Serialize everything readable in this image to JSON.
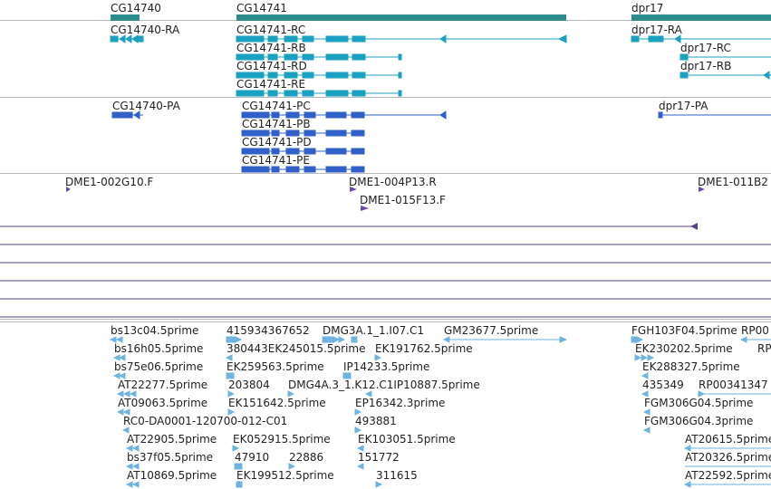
{
  "colors": {
    "gene": "#2e8b8b",
    "transcript": "#1aa0c0",
    "protein": "#3060c8",
    "clone": "#6a4aaa",
    "est": "#6fb3e0",
    "alignment_line": "#5a3f8a",
    "separator": "#b9b9b9"
  },
  "tracks": {
    "genes": [
      {
        "id": "CG14740",
        "label": "CG14740"
      },
      {
        "id": "CG14741",
        "label": "CG14741"
      },
      {
        "id": "dpr17",
        "label": "dpr17"
      }
    ],
    "transcripts": [
      {
        "label": "CG14740-RA"
      },
      {
        "label": "CG14741-RC"
      },
      {
        "label": "CG14741-RB"
      },
      {
        "label": "CG14741-RD"
      },
      {
        "label": "CG14741-RE"
      },
      {
        "label": "dpr17-RA"
      },
      {
        "label": "dpr17-RC"
      },
      {
        "label": "dpr17-RB"
      }
    ],
    "proteins": [
      {
        "label": "CG14740-PA"
      },
      {
        "label": "CG14741-PC"
      },
      {
        "label": "CG14741-PB"
      },
      {
        "label": "CG14741-PD"
      },
      {
        "label": "CG14741-PE"
      },
      {
        "label": "dpr17-PA"
      }
    ],
    "clones": [
      {
        "label": "DME1-002G10.F"
      },
      {
        "label": "DME1-004P13.R"
      },
      {
        "label": "DME1-015F13.F"
      },
      {
        "label": "DME1-011B2"
      }
    ],
    "ests": [
      {
        "label": "bs13c04.5prime"
      },
      {
        "label": "415934367652"
      },
      {
        "label": "DMG3A.1_1.I07.C1"
      },
      {
        "label": "GM23677.5prime"
      },
      {
        "label": "FGH103F04.5prime"
      },
      {
        "label": "RP00"
      },
      {
        "label": "bs16h05.5prime"
      },
      {
        "label": "380443EK245015.5prime"
      },
      {
        "label": "EK191762.5prime"
      },
      {
        "label": "EK230202.5prime"
      },
      {
        "label": "RP"
      },
      {
        "label": "bs75e06.5prime"
      },
      {
        "label": "EK259563.5prime"
      },
      {
        "label": "EK288327.5prime"
      },
      {
        "label": "AT22277.5prime"
      },
      {
        "label": "IP14233.5prime"
      },
      {
        "label": "AT09063.5prime"
      },
      {
        "label": "203804"
      },
      {
        "label": "DMG4A.3_1.K12.C1IP10887.5prime"
      },
      {
        "label": "435349"
      },
      {
        "label": "RP00341347"
      },
      {
        "label": "EK151642.5prime"
      },
      {
        "label": "EP16342.3prime"
      },
      {
        "label": "FGM306G04.5prime"
      },
      {
        "label": "RC0-DA0001-120700-012-C01"
      },
      {
        "label": "493881"
      },
      {
        "label": "FGM306G04.3prime"
      },
      {
        "label": "AT22905.5prime"
      },
      {
        "label": "EK052915.5prime"
      },
      {
        "label": "EK103051.5prime"
      },
      {
        "label": "AT20615.5prime"
      },
      {
        "label": "bs37f05.5prime"
      },
      {
        "label": "47910"
      },
      {
        "label": "22886"
      },
      {
        "label": "151772"
      },
      {
        "label": "AT20326.5prime"
      },
      {
        "label": "AT10869.5prime"
      },
      {
        "label": "EK199512.5prime"
      },
      {
        "label": "311615"
      },
      {
        "label": "AT22592.5prime"
      }
    ]
  }
}
